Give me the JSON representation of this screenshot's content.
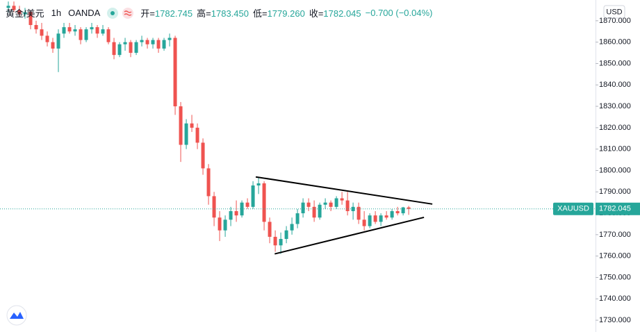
{
  "header": {
    "symbol": "黄金/美元",
    "interval": "1h",
    "exchange": "OANDA",
    "stats": [
      {
        "label": "开=",
        "value": "1782.745"
      },
      {
        "label": "高=",
        "value": "1783.450"
      },
      {
        "label": "低=",
        "value": "1779.260"
      },
      {
        "label": "收=",
        "value": "1782.045"
      }
    ],
    "change": "−0.700 (−0.04%)"
  },
  "chart_data": {
    "type": "candlestick",
    "up_color": "#26a69a",
    "down_color": "#ef5350",
    "grid": false,
    "xlim": [
      -1.5,
      105.6
    ],
    "ylim": [
      1724.5,
      1879.7
    ],
    "yticks": [
      {
        "value": 1730,
        "label": "1730.000"
      },
      {
        "value": 1740,
        "label": "1740.000"
      },
      {
        "value": 1750,
        "label": "1750.000"
      },
      {
        "value": 1760,
        "label": "1760.000"
      },
      {
        "value": 1770,
        "label": "1770.000"
      },
      {
        "value": 1780,
        "label": "1780.000"
      },
      {
        "value": 1790,
        "label": "1790.000"
      },
      {
        "value": 1800,
        "label": "1800.000"
      },
      {
        "value": 1810,
        "label": "1810.000"
      },
      {
        "value": 1820,
        "label": "1820.000"
      },
      {
        "value": 1830,
        "label": "1830.000"
      },
      {
        "value": 1840,
        "label": "1840.000"
      },
      {
        "value": 1850,
        "label": "1850.000"
      },
      {
        "value": 1860,
        "label": "1860.000"
      },
      {
        "value": 1870,
        "label": "1870.000"
      }
    ],
    "currency": "USD",
    "ticker": "XAUUSD",
    "last_price": 1782.045,
    "open": [
      1876,
      1877,
      1875,
      1873,
      1874,
      1868,
      1866,
      1863,
      1860,
      1857,
      1864,
      1867,
      1865,
      1866,
      1861,
      1866,
      1867,
      1864,
      1866,
      1860,
      1854,
      1859,
      1860,
      1855,
      1860,
      1861,
      1859,
      1861,
      1857,
      1861,
      1862,
      1830,
      1812,
      1822,
      1820,
      1813,
      1801,
      1788,
      1778,
      1772,
      1777,
      1781,
      1779,
      1785,
      1783,
      1793,
      1794,
      1776,
      1769,
      1765,
      1768,
      1772,
      1775,
      1780,
      1785,
      1783,
      1778,
      1784,
      1785,
      1783,
      1787,
      1786,
      1781,
      1783,
      1777,
      1774,
      1779,
      1776,
      1779,
      1778,
      1781,
      1780,
      1782.745
    ],
    "high": [
      1879,
      1879,
      1877,
      1876,
      1875,
      1870,
      1869,
      1865,
      1862,
      1866,
      1869,
      1869,
      1868,
      1867,
      1867,
      1869,
      1868,
      1868,
      1867,
      1862,
      1860,
      1862,
      1861,
      1861,
      1863,
      1862,
      1862,
      1862,
      1862,
      1864,
      1863,
      1832,
      1824,
      1826,
      1822,
      1815,
      1803,
      1790,
      1781,
      1779,
      1783,
      1786,
      1786,
      1787,
      1795,
      1797,
      1795,
      1778,
      1772,
      1771,
      1774,
      1778,
      1782,
      1787,
      1787,
      1786,
      1785,
      1787,
      1786,
      1788,
      1790,
      1790,
      1785,
      1785,
      1781,
      1780,
      1781,
      1780,
      1781,
      1782,
      1783,
      1783,
      1783.45
    ],
    "low": [
      1874,
      1874,
      1872,
      1871,
      1866,
      1864,
      1861,
      1858,
      1855,
      1846,
      1862,
      1864,
      1863,
      1859,
      1860,
      1864,
      1862,
      1863,
      1859,
      1852,
      1853,
      1856,
      1853,
      1854,
      1858,
      1857,
      1857,
      1855,
      1856,
      1858,
      1826,
      1804,
      1810,
      1818,
      1810,
      1798,
      1784,
      1774,
      1767,
      1769,
      1774,
      1776,
      1778,
      1782,
      1782,
      1789,
      1772,
      1766,
      1762,
      1761,
      1766,
      1770,
      1773,
      1778,
      1781,
      1776,
      1777,
      1782,
      1781,
      1782,
      1784,
      1779,
      1777,
      1775,
      1772,
      1773,
      1775,
      1774,
      1777,
      1777,
      1779,
      1779,
      1779.26
    ],
    "close": [
      1877,
      1875,
      1873,
      1874,
      1868,
      1866,
      1863,
      1860,
      1857,
      1864,
      1867,
      1865,
      1866,
      1861,
      1866,
      1867,
      1864,
      1866,
      1860,
      1854,
      1859,
      1860,
      1855,
      1860,
      1861,
      1859,
      1861,
      1857,
      1861,
      1862,
      1830,
      1812,
      1822,
      1820,
      1813,
      1801,
      1788,
      1778,
      1772,
      1777,
      1781,
      1779,
      1785,
      1783,
      1793,
      1794,
      1776,
      1769,
      1765,
      1768,
      1772,
      1775,
      1780,
      1785,
      1783,
      1778,
      1784,
      1785,
      1783,
      1787,
      1786,
      1781,
      1783,
      1777,
      1774,
      1779,
      1776,
      1779,
      1778,
      1781,
      1780,
      1782.745,
      1782.045
    ],
    "trendlines": [
      {
        "start": [
          44.5,
          1797
        ],
        "end": [
          76.25,
          1784.3
        ]
      },
      {
        "start": [
          47.9,
          1761
        ],
        "end": [
          74.75,
          1778.1
        ]
      }
    ]
  }
}
